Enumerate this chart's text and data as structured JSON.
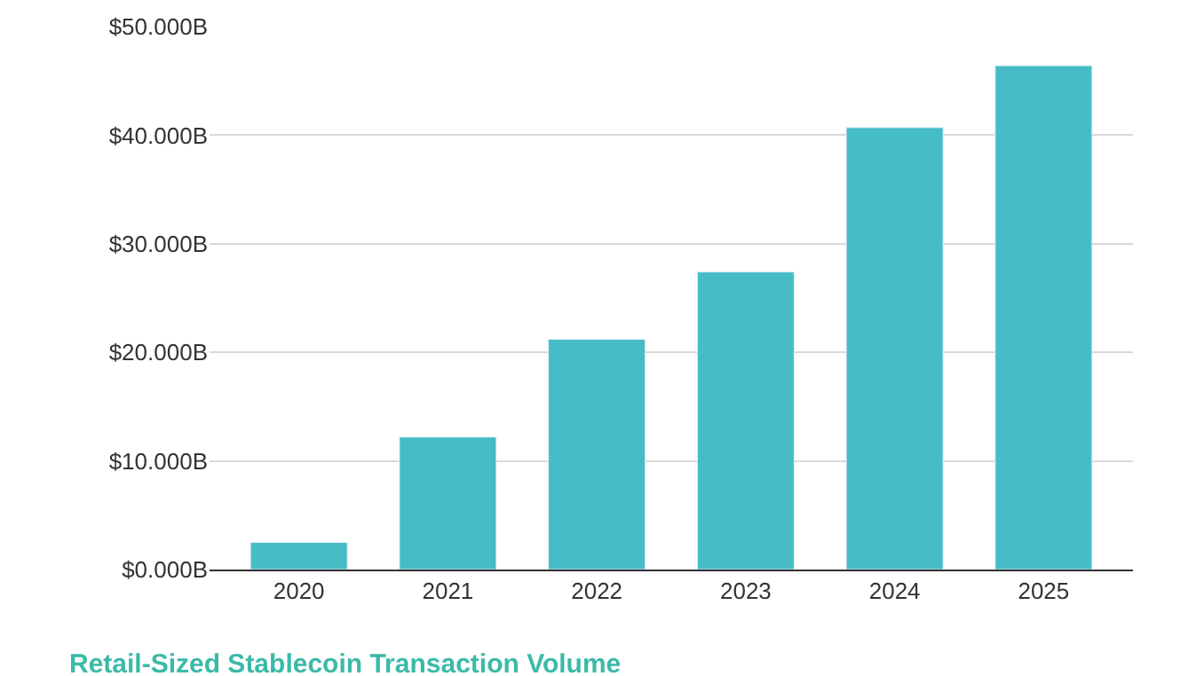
{
  "chart_data": {
    "type": "bar",
    "title": "Retail-Sized Stablecoin Transaction Volume",
    "categories": [
      "2020",
      "2021",
      "2022",
      "2023",
      "2024",
      "2025"
    ],
    "values": [
      2.5,
      12.2,
      21.2,
      27.4,
      40.7,
      46.4
    ],
    "color": "#45bcc6",
    "ylim": [
      0,
      50
    ],
    "yticks": [
      {
        "value": 0,
        "label": "$0.000B"
      },
      {
        "value": 10,
        "label": "$10.000B"
      },
      {
        "value": 20,
        "label": "$20.000B"
      },
      {
        "value": 30,
        "label": "$30.000B"
      },
      {
        "value": 40,
        "label": "$40.000B"
      },
      {
        "value": 50,
        "label": "$50.000B"
      }
    ],
    "grid": "y"
  }
}
